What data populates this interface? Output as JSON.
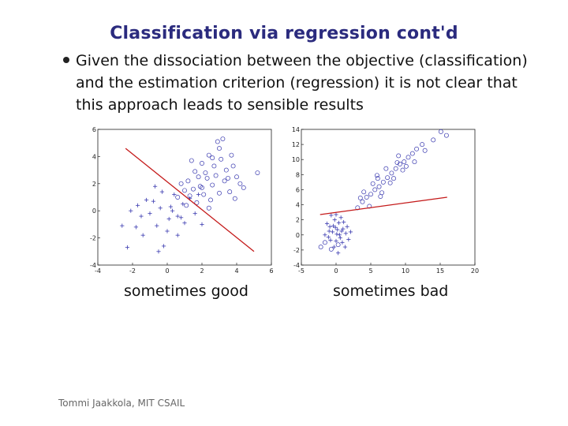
{
  "slide": {
    "title": "Classification via regression cont'd",
    "bullet_text": "Given the dissociation between the objective (classification) and the estimation criterion (regression) it is not clear that this approach leads to sensible results",
    "footer": "Tommi Jaakkola, MIT CSAIL"
  },
  "chart_data": [
    {
      "type": "scatter",
      "caption": "sometimes good",
      "xlim": [
        -4,
        6
      ],
      "ylim": [
        -4,
        6
      ],
      "xticks": [
        -4,
        -2,
        0,
        2,
        4,
        6
      ],
      "yticks": [
        -4,
        -2,
        0,
        2,
        4,
        6
      ],
      "colors": {
        "points": "#3b3bb0",
        "line": "#c41a1a",
        "axis": "#222222"
      },
      "series": [
        {
          "marker": "circle",
          "points": [
            [
              3.1,
              3.8
            ],
            [
              2.4,
              4.1
            ],
            [
              2.0,
              3.5
            ],
            [
              1.6,
              2.9
            ],
            [
              2.8,
              2.6
            ],
            [
              3.4,
              3.0
            ],
            [
              1.2,
              2.2
            ],
            [
              2.6,
              1.9
            ],
            [
              3.6,
              1.4
            ],
            [
              2.1,
              1.2
            ],
            [
              1.5,
              1.6
            ],
            [
              3.0,
              4.6
            ],
            [
              3.8,
              3.3
            ],
            [
              2.3,
              2.4
            ],
            [
              1.9,
              1.8
            ],
            [
              2.7,
              3.3
            ],
            [
              4.2,
              2.0
            ],
            [
              1.0,
              1.5
            ],
            [
              3.3,
              2.2
            ],
            [
              2.5,
              0.8
            ],
            [
              1.7,
              0.6
            ],
            [
              3.9,
              0.9
            ],
            [
              2.2,
              2.8
            ],
            [
              1.4,
              3.7
            ],
            [
              2.9,
              5.1
            ],
            [
              3.2,
              5.3
            ],
            [
              5.2,
              2.8
            ],
            [
              4.0,
              2.5
            ],
            [
              0.6,
              1.0
            ],
            [
              1.1,
              0.4
            ],
            [
              2.4,
              0.2
            ],
            [
              3.0,
              1.3
            ],
            [
              3.5,
              2.4
            ],
            [
              1.8,
              2.5
            ],
            [
              2.6,
              3.9
            ],
            [
              3.7,
              4.1
            ],
            [
              4.4,
              1.7
            ],
            [
              0.8,
              2.0
            ],
            [
              2.0,
              1.7
            ],
            [
              1.3,
              1.1
            ]
          ]
        },
        {
          "marker": "plus",
          "points": [
            [
              -1.5,
              -0.4
            ],
            [
              -0.8,
              0.7
            ],
            [
              -0.3,
              1.4
            ],
            [
              0.2,
              0.3
            ],
            [
              0.6,
              -0.4
            ],
            [
              1.0,
              -0.9
            ],
            [
              -1.2,
              0.8
            ],
            [
              -0.6,
              -1.1
            ],
            [
              0.1,
              -0.6
            ],
            [
              0.9,
              0.5
            ],
            [
              -2.1,
              0.0
            ],
            [
              -1.8,
              -1.2
            ],
            [
              -0.2,
              -2.6
            ],
            [
              0.6,
              -1.8
            ],
            [
              1.6,
              -0.2
            ],
            [
              -1.4,
              -1.8
            ],
            [
              -2.6,
              -1.1
            ],
            [
              -0.4,
              0.2
            ],
            [
              0.4,
              1.2
            ],
            [
              1.3,
              0.9
            ],
            [
              -1.0,
              -0.2
            ],
            [
              -2.3,
              -2.7
            ],
            [
              0.0,
              -1.5
            ],
            [
              0.8,
              -0.5
            ],
            [
              -0.7,
              1.8
            ],
            [
              -1.7,
              0.4
            ],
            [
              0.3,
              0.0
            ],
            [
              1.8,
              1.2
            ],
            [
              2.0,
              -1.0
            ],
            [
              -0.5,
              -3.0
            ]
          ]
        }
      ],
      "fit_line": [
        [
          -2.4,
          4.6
        ],
        [
          5.0,
          -3.0
        ]
      ]
    },
    {
      "type": "scatter",
      "caption": "sometimes bad",
      "xlim": [
        -5,
        20
      ],
      "ylim": [
        -4,
        14
      ],
      "xticks": [
        -5,
        0,
        5,
        10,
        15,
        20
      ],
      "yticks": [
        -4,
        -2,
        0,
        2,
        4,
        6,
        8,
        10,
        12,
        14
      ],
      "colors": {
        "points": "#3b3bb0",
        "line": "#c41a1a",
        "axis": "#222222"
      },
      "series": [
        {
          "marker": "circle",
          "points": [
            [
              3.1,
              3.6
            ],
            [
              3.8,
              4.4
            ],
            [
              4.4,
              5.0
            ],
            [
              5.0,
              5.4
            ],
            [
              5.6,
              6.0
            ],
            [
              6.2,
              6.4
            ],
            [
              6.8,
              7.0
            ],
            [
              7.4,
              7.6
            ],
            [
              8.0,
              8.2
            ],
            [
              8.6,
              8.8
            ],
            [
              9.2,
              9.4
            ],
            [
              9.8,
              9.7
            ],
            [
              10.4,
              10.3
            ],
            [
              11.0,
              10.8
            ],
            [
              11.6,
              11.4
            ],
            [
              12.4,
              12.0
            ],
            [
              14.0,
              12.6
            ],
            [
              15.1,
              13.7
            ],
            [
              15.9,
              13.2
            ],
            [
              4.0,
              5.7
            ],
            [
              5.3,
              6.8
            ],
            [
              6.6,
              5.6
            ],
            [
              7.2,
              8.8
            ],
            [
              8.3,
              7.5
            ],
            [
              9.0,
              10.5
            ],
            [
              10.1,
              9.1
            ],
            [
              11.3,
              9.7
            ],
            [
              6.0,
              7.5
            ],
            [
              7.8,
              6.9
            ],
            [
              3.5,
              4.9
            ],
            [
              4.8,
              3.8
            ],
            [
              5.9,
              7.9
            ],
            [
              8.8,
              9.6
            ],
            [
              9.6,
              8.6
            ],
            [
              6.4,
              5.1
            ],
            [
              -2.2,
              -1.6
            ],
            [
              -1.6,
              -1.0
            ],
            [
              -0.7,
              -1.9
            ],
            [
              0.3,
              -1.3
            ],
            [
              12.8,
              11.2
            ]
          ]
        },
        {
          "marker": "plus",
          "points": [
            [
              -1.0,
              0.5
            ],
            [
              -0.4,
              1.2
            ],
            [
              0.1,
              0.1
            ],
            [
              0.6,
              -0.4
            ],
            [
              1.0,
              0.8
            ],
            [
              -0.8,
              -0.7
            ],
            [
              -0.2,
              2.0
            ],
            [
              0.4,
              1.6
            ],
            [
              1.4,
              0.2
            ],
            [
              -1.3,
              1.5
            ],
            [
              0.9,
              -1.0
            ],
            [
              0.0,
              -0.8
            ],
            [
              -0.5,
              0.4
            ],
            [
              0.7,
              2.3
            ],
            [
              1.6,
              1.1
            ],
            [
              -1.1,
              -0.3
            ],
            [
              0.2,
              0.7
            ],
            [
              1.1,
              1.7
            ],
            [
              -0.3,
              -1.6
            ],
            [
              0.5,
              0.0
            ],
            [
              1.8,
              -0.6
            ],
            [
              -0.7,
              2.6
            ],
            [
              0.8,
              0.5
            ],
            [
              -0.1,
              1.0
            ],
            [
              1.3,
              -1.6
            ],
            [
              -1.6,
              0.0
            ],
            [
              0.3,
              -2.4
            ],
            [
              2.1,
              0.4
            ],
            [
              0.0,
              2.7
            ],
            [
              -0.9,
              1.1
            ]
          ]
        }
      ],
      "fit_line": [
        [
          -2.3,
          2.7
        ],
        [
          16.0,
          5.0
        ]
      ]
    }
  ]
}
